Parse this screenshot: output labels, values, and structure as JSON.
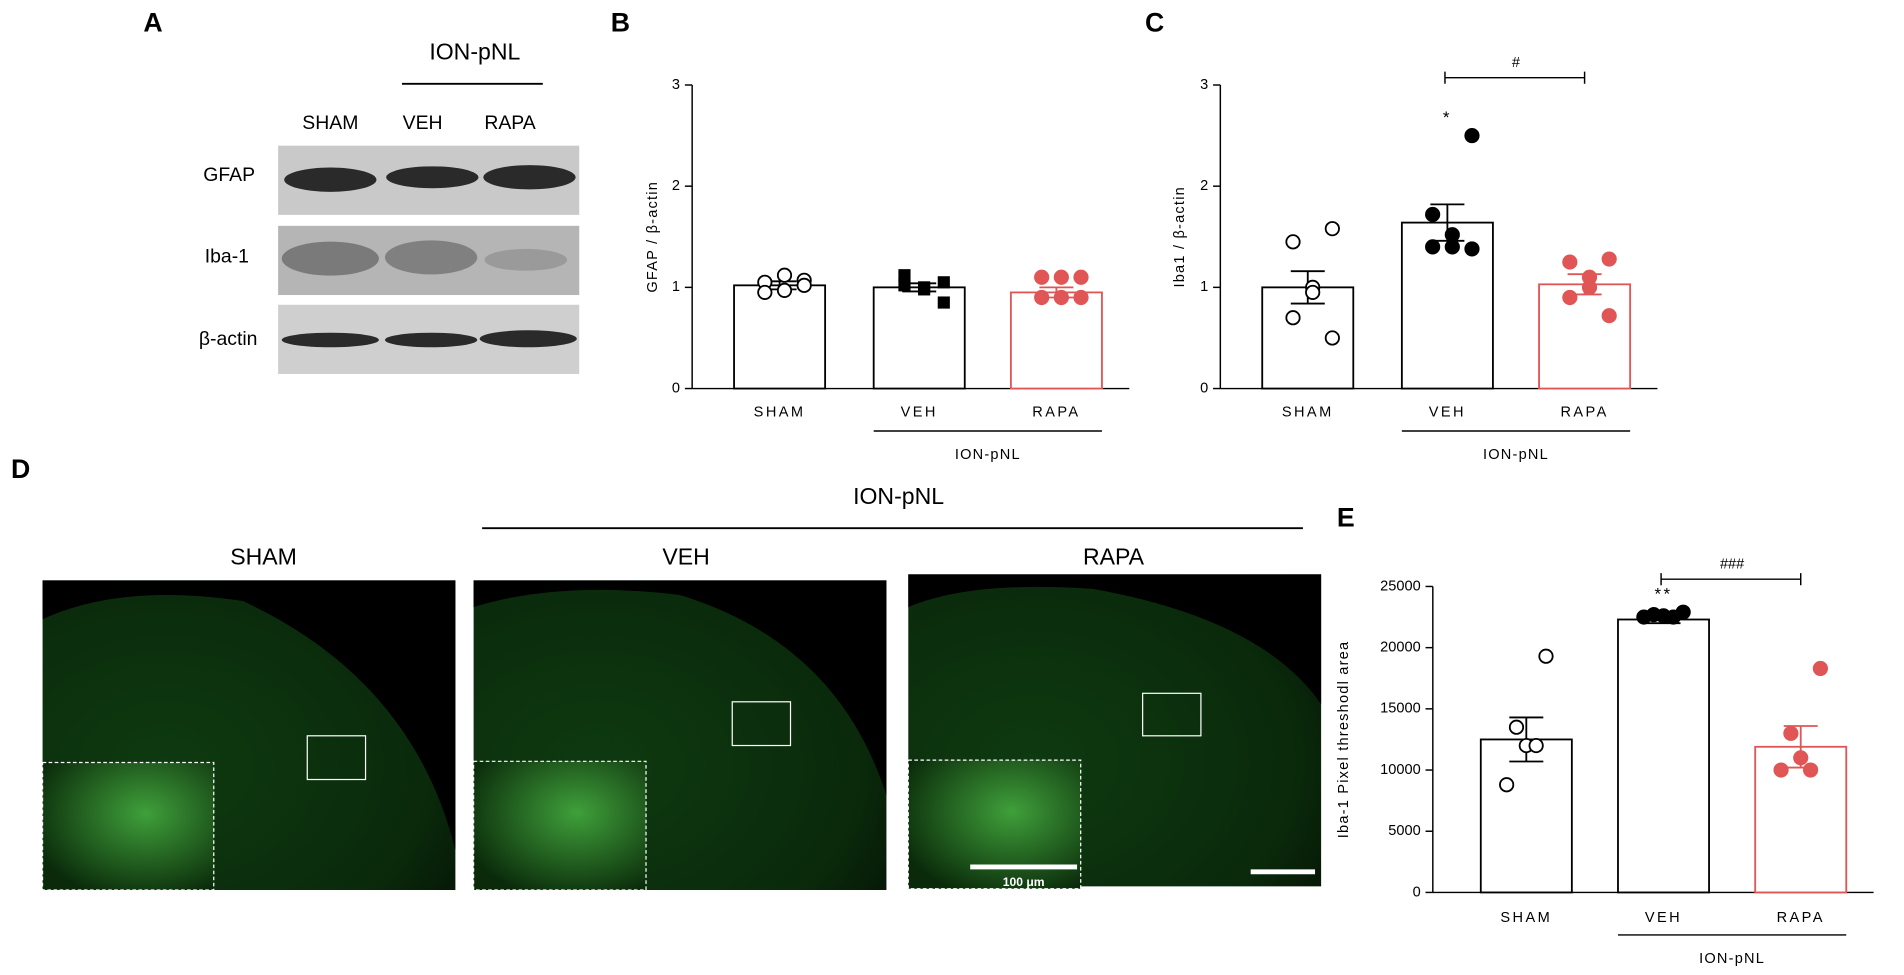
{
  "panel_labels": [
    "A",
    "B",
    "C",
    "D",
    "E"
  ],
  "blot": {
    "group_label": "ION-pNL",
    "columns": [
      "SHAM",
      "VEH",
      "RAPA"
    ],
    "rows": [
      "GFAP",
      "Iba-1",
      "β-actin"
    ]
  },
  "images": {
    "group_label": "ION-pNL",
    "columns": [
      "SHAM",
      "VEH",
      "RAPA"
    ],
    "scale_bar": "100 μm"
  },
  "chart_data": [
    {
      "type": "bar",
      "y_label": "GFAP / β-actin",
      "categories": [
        "SHAM",
        "VEH",
        "RAPA"
      ],
      "group_label": "ION-pNL",
      "values": [
        1.02,
        1.0,
        0.95
      ],
      "errors": [
        0.04,
        0.04,
        0.05
      ],
      "colors": [
        "#000000",
        "#000000",
        "#e05555"
      ],
      "markers": [
        "open-circle",
        "square",
        "circle"
      ],
      "points": [
        [
          1.07,
          1.05,
          1.12,
          0.97,
          0.95,
          1.02
        ],
        [
          1.05,
          1.02,
          1.0,
          0.98,
          1.12,
          0.85
        ],
        [
          1.1,
          1.1,
          1.1,
          0.9,
          0.9,
          0.9
        ]
      ],
      "ylim": [
        0,
        3
      ],
      "yticks": [
        0,
        1,
        2,
        3
      ],
      "annotations": []
    },
    {
      "type": "bar",
      "y_label": "Iba1 / β-actin",
      "categories": [
        "SHAM",
        "VEH",
        "RAPA"
      ],
      "group_label": "ION-pNL",
      "values": [
        1.0,
        1.64,
        1.03
      ],
      "errors": [
        0.16,
        0.18,
        0.1
      ],
      "colors": [
        "#000000",
        "#000000",
        "#e05555"
      ],
      "markers": [
        "open-circle",
        "circle",
        "circle"
      ],
      "points": [
        [
          1.58,
          1.45,
          1.0,
          0.95,
          0.7,
          0.5
        ],
        [
          2.5,
          1.72,
          1.52,
          1.4,
          1.4,
          1.38
        ],
        [
          1.28,
          1.25,
          1.1,
          1.0,
          0.9,
          0.72
        ]
      ],
      "ylim": [
        0,
        3
      ],
      "yticks": [
        0,
        1,
        2,
        3
      ],
      "annotations": [
        "*",
        "#"
      ]
    },
    {
      "type": "bar",
      "y_label": "Iba-1 Pixel threshodl area",
      "categories": [
        "SHAM",
        "VEH",
        "RAPA"
      ],
      "group_label": "ION-pNL",
      "values": [
        12500,
        22300,
        11900
      ],
      "errors": [
        1800,
        300,
        1700
      ],
      "colors": [
        "#000000",
        "#000000",
        "#e05555"
      ],
      "markers": [
        "open-circle",
        "circle",
        "circle"
      ],
      "points": [
        [
          19300,
          13500,
          12000,
          12000,
          8800
        ],
        [
          22900,
          22700,
          22600,
          22500,
          22500
        ],
        [
          18300,
          13000,
          11000,
          10000,
          10000
        ]
      ],
      "ylim": [
        0,
        25000
      ],
      "yticks": [
        0,
        5000,
        10000,
        15000,
        20000,
        25000
      ],
      "annotations": [
        "**",
        "###"
      ]
    }
  ]
}
